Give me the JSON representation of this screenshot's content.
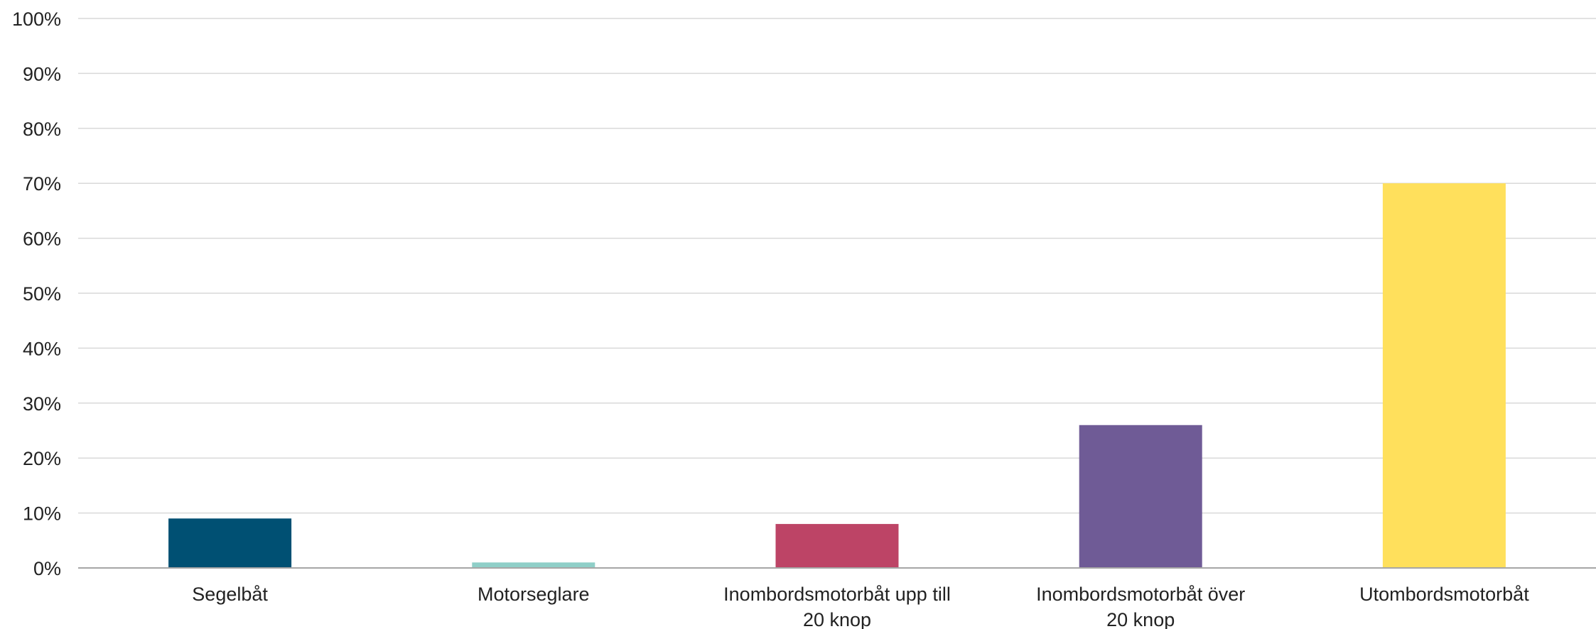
{
  "chart_data": {
    "type": "bar",
    "title": "",
    "xlabel": "",
    "ylabel": "",
    "ylim": [
      0,
      100
    ],
    "y_ticks": [
      {
        "value": 0,
        "label": "0%"
      },
      {
        "value": 10,
        "label": "10%"
      },
      {
        "value": 20,
        "label": "20%"
      },
      {
        "value": 30,
        "label": "30%"
      },
      {
        "value": 40,
        "label": "40%"
      },
      {
        "value": 50,
        "label": "50%"
      },
      {
        "value": 60,
        "label": "60%"
      },
      {
        "value": 70,
        "label": "70%"
      },
      {
        "value": 80,
        "label": "80%"
      },
      {
        "value": 90,
        "label": "90%"
      },
      {
        "value": 100,
        "label": "100%"
      }
    ],
    "grid": true,
    "legend": "none",
    "categories": [
      [
        "Segelbåt"
      ],
      [
        "Motorseglare"
      ],
      [
        "Inombordsmotorbåt upp till",
        "20 knop"
      ],
      [
        "Inombordsmotorbåt över",
        "20 knop"
      ],
      [
        "Utombordsmotorbåt"
      ]
    ],
    "values": [
      9,
      1,
      8,
      26,
      70
    ],
    "colors": [
      "#005073",
      "#8fcfc8",
      "#bd4466",
      "#6f5b96",
      "#ffe05c"
    ]
  }
}
